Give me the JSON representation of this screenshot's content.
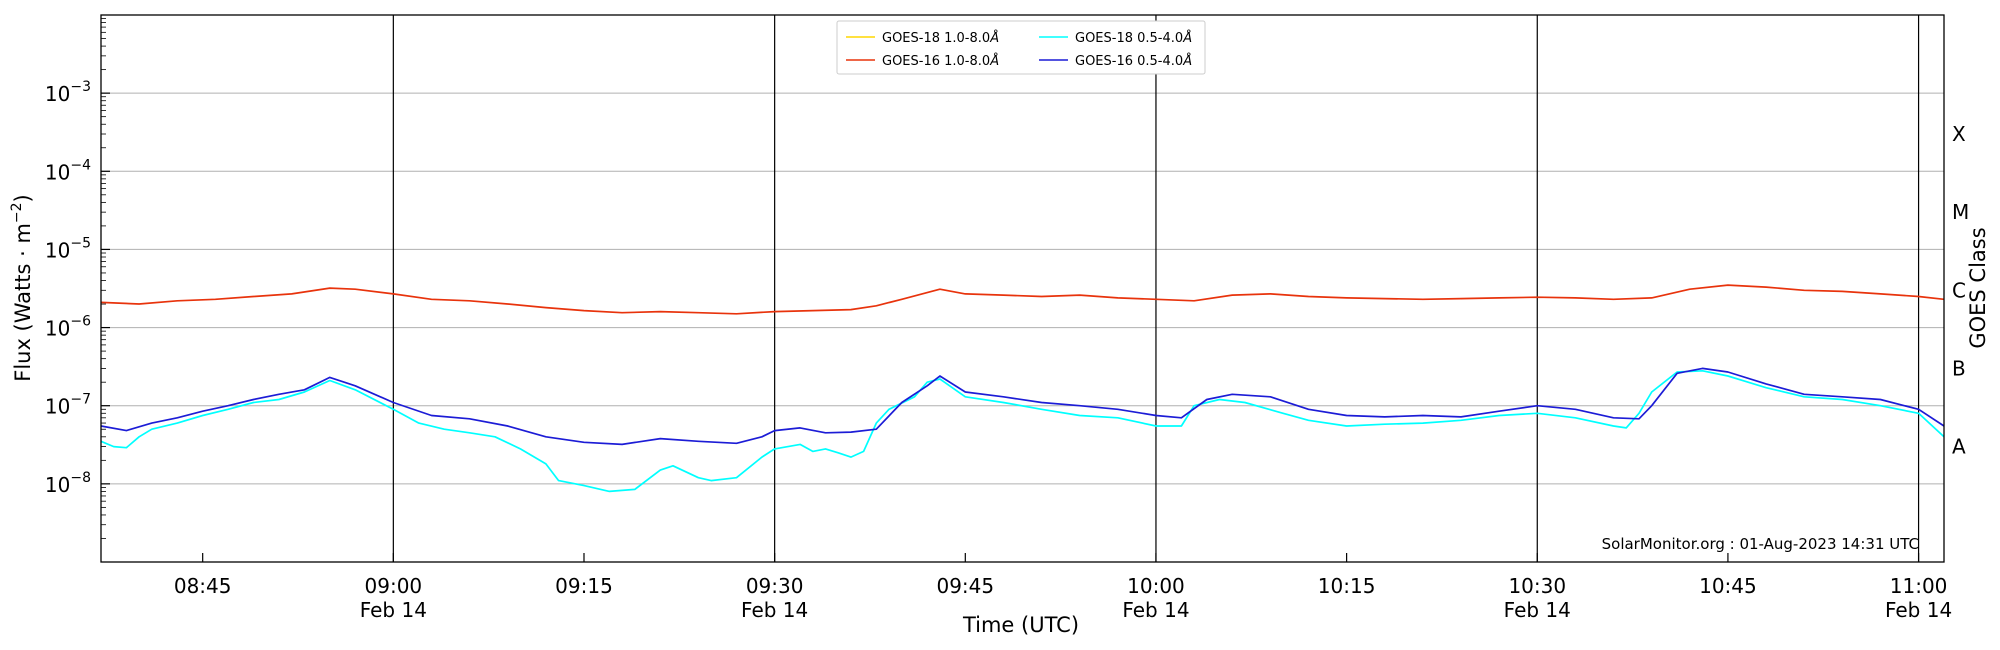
{
  "chart_data": {
    "type": "line",
    "ylabel_main": "Flux (Watts · m",
    "ylabel_sup": "−2",
    "ylabel_close": ")",
    "xlabel": "Time (UTC)",
    "right_ylabel": "GOES Class",
    "credit": "SolarMonitor.org : 01-Aug-2023 14:31 UTC",
    "y_scale": "log",
    "ylim": [
      1e-09,
      0.01
    ],
    "xlim": [
      "08:37",
      "11:02"
    ],
    "grid": "horizontal",
    "legend_position": "top-center",
    "y_ticks": [
      {
        "value": 1e-08,
        "base": "10",
        "exp": "−8"
      },
      {
        "value": 1e-07,
        "base": "10",
        "exp": "−7"
      },
      {
        "value": 1e-06,
        "base": "10",
        "exp": "−6"
      },
      {
        "value": 1e-05,
        "base": "10",
        "exp": "−5"
      },
      {
        "value": 0.0001,
        "base": "10",
        "exp": "−4"
      },
      {
        "value": 0.001,
        "base": "10",
        "exp": "−3"
      }
    ],
    "x_ticks": [
      {
        "time": "08:45",
        "label": "08:45",
        "date": ""
      },
      {
        "time": "09:00",
        "label": "09:00",
        "date": "Feb 14"
      },
      {
        "time": "09:15",
        "label": "09:15",
        "date": ""
      },
      {
        "time": "09:30",
        "label": "09:30",
        "date": "Feb 14"
      },
      {
        "time": "09:45",
        "label": "09:45",
        "date": ""
      },
      {
        "time": "10:00",
        "label": "10:00",
        "date": "Feb 14"
      },
      {
        "time": "10:15",
        "label": "10:15",
        "date": ""
      },
      {
        "time": "10:30",
        "label": "10:30",
        "date": "Feb 14"
      },
      {
        "time": "10:45",
        "label": "10:45",
        "date": ""
      },
      {
        "time": "11:00",
        "label": "11:00",
        "date": "Feb 14"
      }
    ],
    "goes_classes": [
      {
        "label": "A",
        "value": 3e-08
      },
      {
        "label": "B",
        "value": 3e-07
      },
      {
        "label": "C",
        "value": 3e-06
      },
      {
        "label": "M",
        "value": 3e-05
      },
      {
        "label": "X",
        "value": 0.0003
      }
    ],
    "series": [
      {
        "name": "GOES-18 1.0-8.0",
        "unit_symbol": "Å",
        "color": "#ffd700",
        "x": [],
        "y": []
      },
      {
        "name": "GOES-16 1.0-8.0",
        "unit_symbol": "Å",
        "color": "#e8330c",
        "x": [
          "08:37",
          "08:40",
          "08:43",
          "08:46",
          "08:49",
          "08:52",
          "08:55",
          "08:57",
          "09:00",
          "09:03",
          "09:06",
          "09:09",
          "09:12",
          "09:15",
          "09:18",
          "09:21",
          "09:24",
          "09:27",
          "09:30",
          "09:33",
          "09:36",
          "09:38",
          "09:40",
          "09:43",
          "09:45",
          "09:48",
          "09:51",
          "09:54",
          "09:57",
          "10:00",
          "10:03",
          "10:06",
          "10:09",
          "10:12",
          "10:15",
          "10:18",
          "10:21",
          "10:24",
          "10:27",
          "10:30",
          "10:33",
          "10:36",
          "10:39",
          "10:42",
          "10:45",
          "10:48",
          "10:51",
          "10:54",
          "10:57",
          "11:00",
          "11:02"
        ],
        "y": [
          2.1e-06,
          2e-06,
          2.2e-06,
          2.3e-06,
          2.5e-06,
          2.7e-06,
          3.2e-06,
          3.1e-06,
          2.7e-06,
          2.3e-06,
          2.2e-06,
          2e-06,
          1.8e-06,
          1.65e-06,
          1.55e-06,
          1.6e-06,
          1.55e-06,
          1.5e-06,
          1.6e-06,
          1.65e-06,
          1.7e-06,
          1.9e-06,
          2.3e-06,
          3.1e-06,
          2.7e-06,
          2.6e-06,
          2.5e-06,
          2.6e-06,
          2.4e-06,
          2.3e-06,
          2.2e-06,
          2.6e-06,
          2.7e-06,
          2.5e-06,
          2.4e-06,
          2.35e-06,
          2.3e-06,
          2.35e-06,
          2.4e-06,
          2.45e-06,
          2.4e-06,
          2.3e-06,
          2.4e-06,
          3.1e-06,
          3.5e-06,
          3.3e-06,
          3e-06,
          2.9e-06,
          2.7e-06,
          2.5e-06,
          2.3e-06
        ]
      },
      {
        "name": "GOES-18 0.5-4.0",
        "unit_symbol": "Å",
        "color": "#00ffff",
        "x": [
          "08:37",
          "08:38",
          "08:39",
          "08:40",
          "08:41",
          "08:43",
          "08:45",
          "08:47",
          "08:49",
          "08:51",
          "08:53",
          "08:55",
          "08:57",
          "09:00",
          "09:02",
          "09:04",
          "09:06",
          "09:08",
          "09:10",
          "09:12",
          "09:13",
          "09:15",
          "09:17",
          "09:19",
          "09:21",
          "09:22",
          "09:24",
          "09:25",
          "09:27",
          "09:29",
          "09:30",
          "09:32",
          "09:33",
          "09:34",
          "09:35",
          "09:36",
          "09:37",
          "09:38",
          "09:39",
          "09:41",
          "09:42",
          "09:43",
          "09:45",
          "09:48",
          "09:51",
          "09:54",
          "09:57",
          "10:00",
          "10:02",
          "10:03",
          "10:05",
          "10:07",
          "10:10",
          "10:12",
          "10:15",
          "10:18",
          "10:21",
          "10:24",
          "10:27",
          "10:30",
          "10:33",
          "10:36",
          "10:37",
          "10:38",
          "10:39",
          "10:41",
          "10:43",
          "10:45",
          "10:48",
          "10:51",
          "10:54",
          "10:57",
          "11:00",
          "11:02"
        ],
        "y": [
          3.5e-08,
          3e-08,
          2.9e-08,
          4e-08,
          5e-08,
          6e-08,
          7.5e-08,
          9e-08,
          1.1e-07,
          1.2e-07,
          1.5e-07,
          2.1e-07,
          1.6e-07,
          9e-08,
          6e-08,
          5e-08,
          4.5e-08,
          4e-08,
          2.8e-08,
          1.8e-08,
          1.1e-08,
          9.5e-09,
          8e-09,
          8.5e-09,
          1.5e-08,
          1.7e-08,
          1.2e-08,
          1.1e-08,
          1.2e-08,
          2.2e-08,
          2.8e-08,
          3.2e-08,
          2.6e-08,
          2.8e-08,
          2.5e-08,
          2.2e-08,
          2.6e-08,
          6e-08,
          9e-08,
          1.3e-07,
          2e-07,
          2.2e-07,
          1.3e-07,
          1.1e-07,
          9e-08,
          7.5e-08,
          7e-08,
          5.5e-08,
          5.5e-08,
          1e-07,
          1.2e-07,
          1.1e-07,
          8e-08,
          6.5e-08,
          5.5e-08,
          5.8e-08,
          6e-08,
          6.5e-08,
          7.5e-08,
          8e-08,
          7e-08,
          5.5e-08,
          5.2e-08,
          8e-08,
          1.5e-07,
          2.7e-07,
          2.8e-07,
          2.4e-07,
          1.7e-07,
          1.3e-07,
          1.2e-07,
          1e-07,
          8e-08,
          4e-08
        ]
      },
      {
        "name": "GOES-16 0.5-4.0",
        "unit_symbol": "Å",
        "color": "#1c1cd6",
        "x": [
          "08:37",
          "08:39",
          "08:41",
          "08:43",
          "08:45",
          "08:47",
          "08:49",
          "08:51",
          "08:53",
          "08:55",
          "08:57",
          "09:00",
          "09:03",
          "09:06",
          "09:09",
          "09:12",
          "09:15",
          "09:18",
          "09:21",
          "09:24",
          "09:27",
          "09:29",
          "09:30",
          "09:32",
          "09:34",
          "09:36",
          "09:38",
          "09:40",
          "09:42",
          "09:43",
          "09:45",
          "09:48",
          "09:51",
          "09:54",
          "09:57",
          "10:00",
          "10:02",
          "10:04",
          "10:06",
          "10:09",
          "10:12",
          "10:15",
          "10:18",
          "10:21",
          "10:24",
          "10:27",
          "10:30",
          "10:33",
          "10:36",
          "10:38",
          "10:39",
          "10:41",
          "10:43",
          "10:45",
          "10:48",
          "10:51",
          "10:54",
          "10:57",
          "11:00",
          "11:02"
        ],
        "y": [
          5.5e-08,
          4.8e-08,
          6e-08,
          7e-08,
          8.5e-08,
          1e-07,
          1.2e-07,
          1.4e-07,
          1.6e-07,
          2.3e-07,
          1.8e-07,
          1.1e-07,
          7.5e-08,
          6.8e-08,
          5.5e-08,
          4e-08,
          3.4e-08,
          3.2e-08,
          3.8e-08,
          3.5e-08,
          3.3e-08,
          4e-08,
          4.8e-08,
          5.2e-08,
          4.5e-08,
          4.6e-08,
          5e-08,
          1.1e-07,
          1.8e-07,
          2.4e-07,
          1.5e-07,
          1.3e-07,
          1.1e-07,
          1e-07,
          9e-08,
          7.5e-08,
          7e-08,
          1.2e-07,
          1.4e-07,
          1.3e-07,
          9e-08,
          7.5e-08,
          7.2e-08,
          7.5e-08,
          7.2e-08,
          8.5e-08,
          1e-07,
          9e-08,
          7e-08,
          6.8e-08,
          1e-07,
          2.6e-07,
          3e-07,
          2.7e-07,
          1.9e-07,
          1.4e-07,
          1.3e-07,
          1.2e-07,
          9e-08,
          5.5e-08
        ]
      }
    ]
  }
}
